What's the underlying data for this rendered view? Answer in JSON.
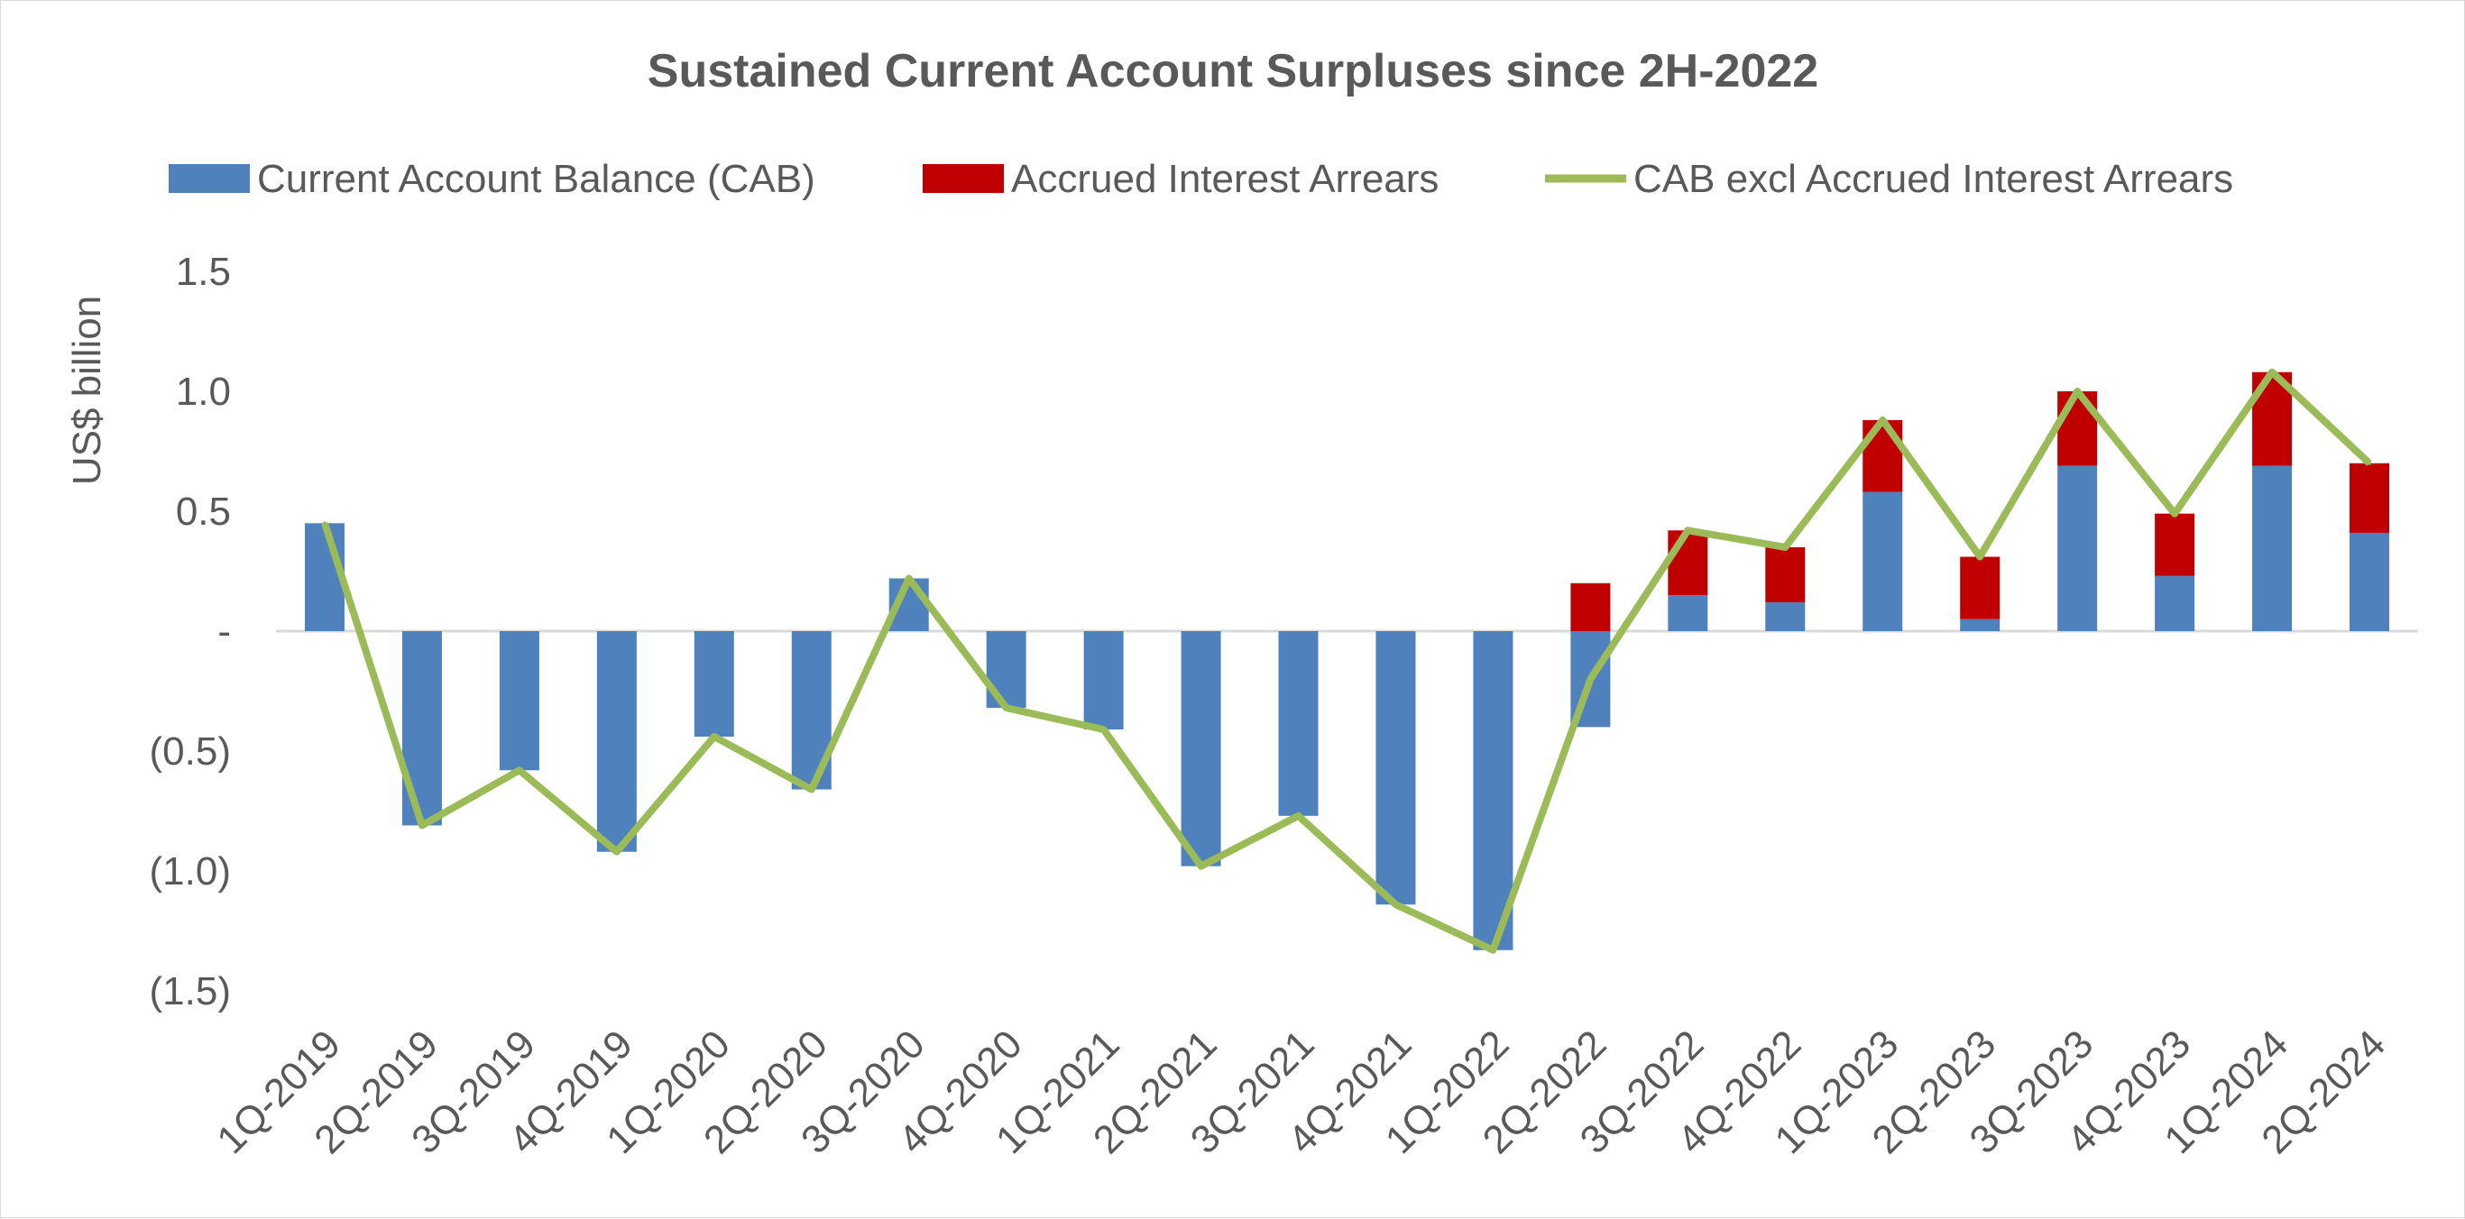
{
  "chart_data": {
    "type": "bar",
    "title": "Sustained Current Account Surpluses since 2H-2022",
    "ylabel": "US$ billion",
    "xlabel": "",
    "ylim": [
      -1.5,
      1.5
    ],
    "yticks": [
      1.5,
      1.0,
      0.5,
      0,
      -0.5,
      -1.0,
      -1.5
    ],
    "ytick_labels": [
      "1.5",
      "1.0",
      "0.5",
      "-",
      "(0.5)",
      "(1.0)",
      "(1.5)"
    ],
    "legend_position": "top",
    "grid": false,
    "categories": [
      "1Q-2019",
      "2Q-2019",
      "3Q-2019",
      "4Q-2019",
      "1Q-2020",
      "2Q-2020",
      "3Q-2020",
      "4Q-2020",
      "1Q-2021",
      "2Q-2021",
      "3Q-2021",
      "4Q-2021",
      "1Q-2022",
      "2Q-2022",
      "3Q-2022",
      "4Q-2022",
      "1Q-2023",
      "2Q-2023",
      "3Q-2023",
      "4Q-2023",
      "1Q-2024",
      "2Q-2024"
    ],
    "series": [
      {
        "name": "Current Account Balance (CAB)",
        "kind": "stacked-bar",
        "color": "#4f81bd",
        "values": [
          0.45,
          -0.81,
          -0.58,
          -0.92,
          -0.44,
          -0.66,
          0.22,
          -0.32,
          -0.41,
          -0.98,
          -0.77,
          -1.14,
          -1.33,
          -0.4,
          0.15,
          0.12,
          0.58,
          0.05,
          0.69,
          0.23,
          0.69,
          0.41
        ]
      },
      {
        "name": "Accrued Interest Arrears",
        "kind": "stacked-bar",
        "color": "#c00000",
        "values": [
          0,
          0,
          0,
          0,
          0,
          0,
          0,
          0,
          0,
          0,
          0,
          0,
          0,
          0.2,
          0.27,
          0.23,
          0.3,
          0.26,
          0.31,
          0.26,
          0.39,
          0.29
        ]
      },
      {
        "name": "CAB excl Accrued Interest Arrears",
        "kind": "line",
        "color": "#9bbb59",
        "values": [
          0.45,
          -0.81,
          -0.58,
          -0.92,
          -0.44,
          -0.66,
          0.22,
          -0.32,
          -0.41,
          -0.98,
          -0.77,
          -1.14,
          -1.33,
          -0.2,
          0.42,
          0.35,
          0.88,
          0.31,
          1.0,
          0.49,
          1.08,
          0.7
        ]
      }
    ]
  }
}
